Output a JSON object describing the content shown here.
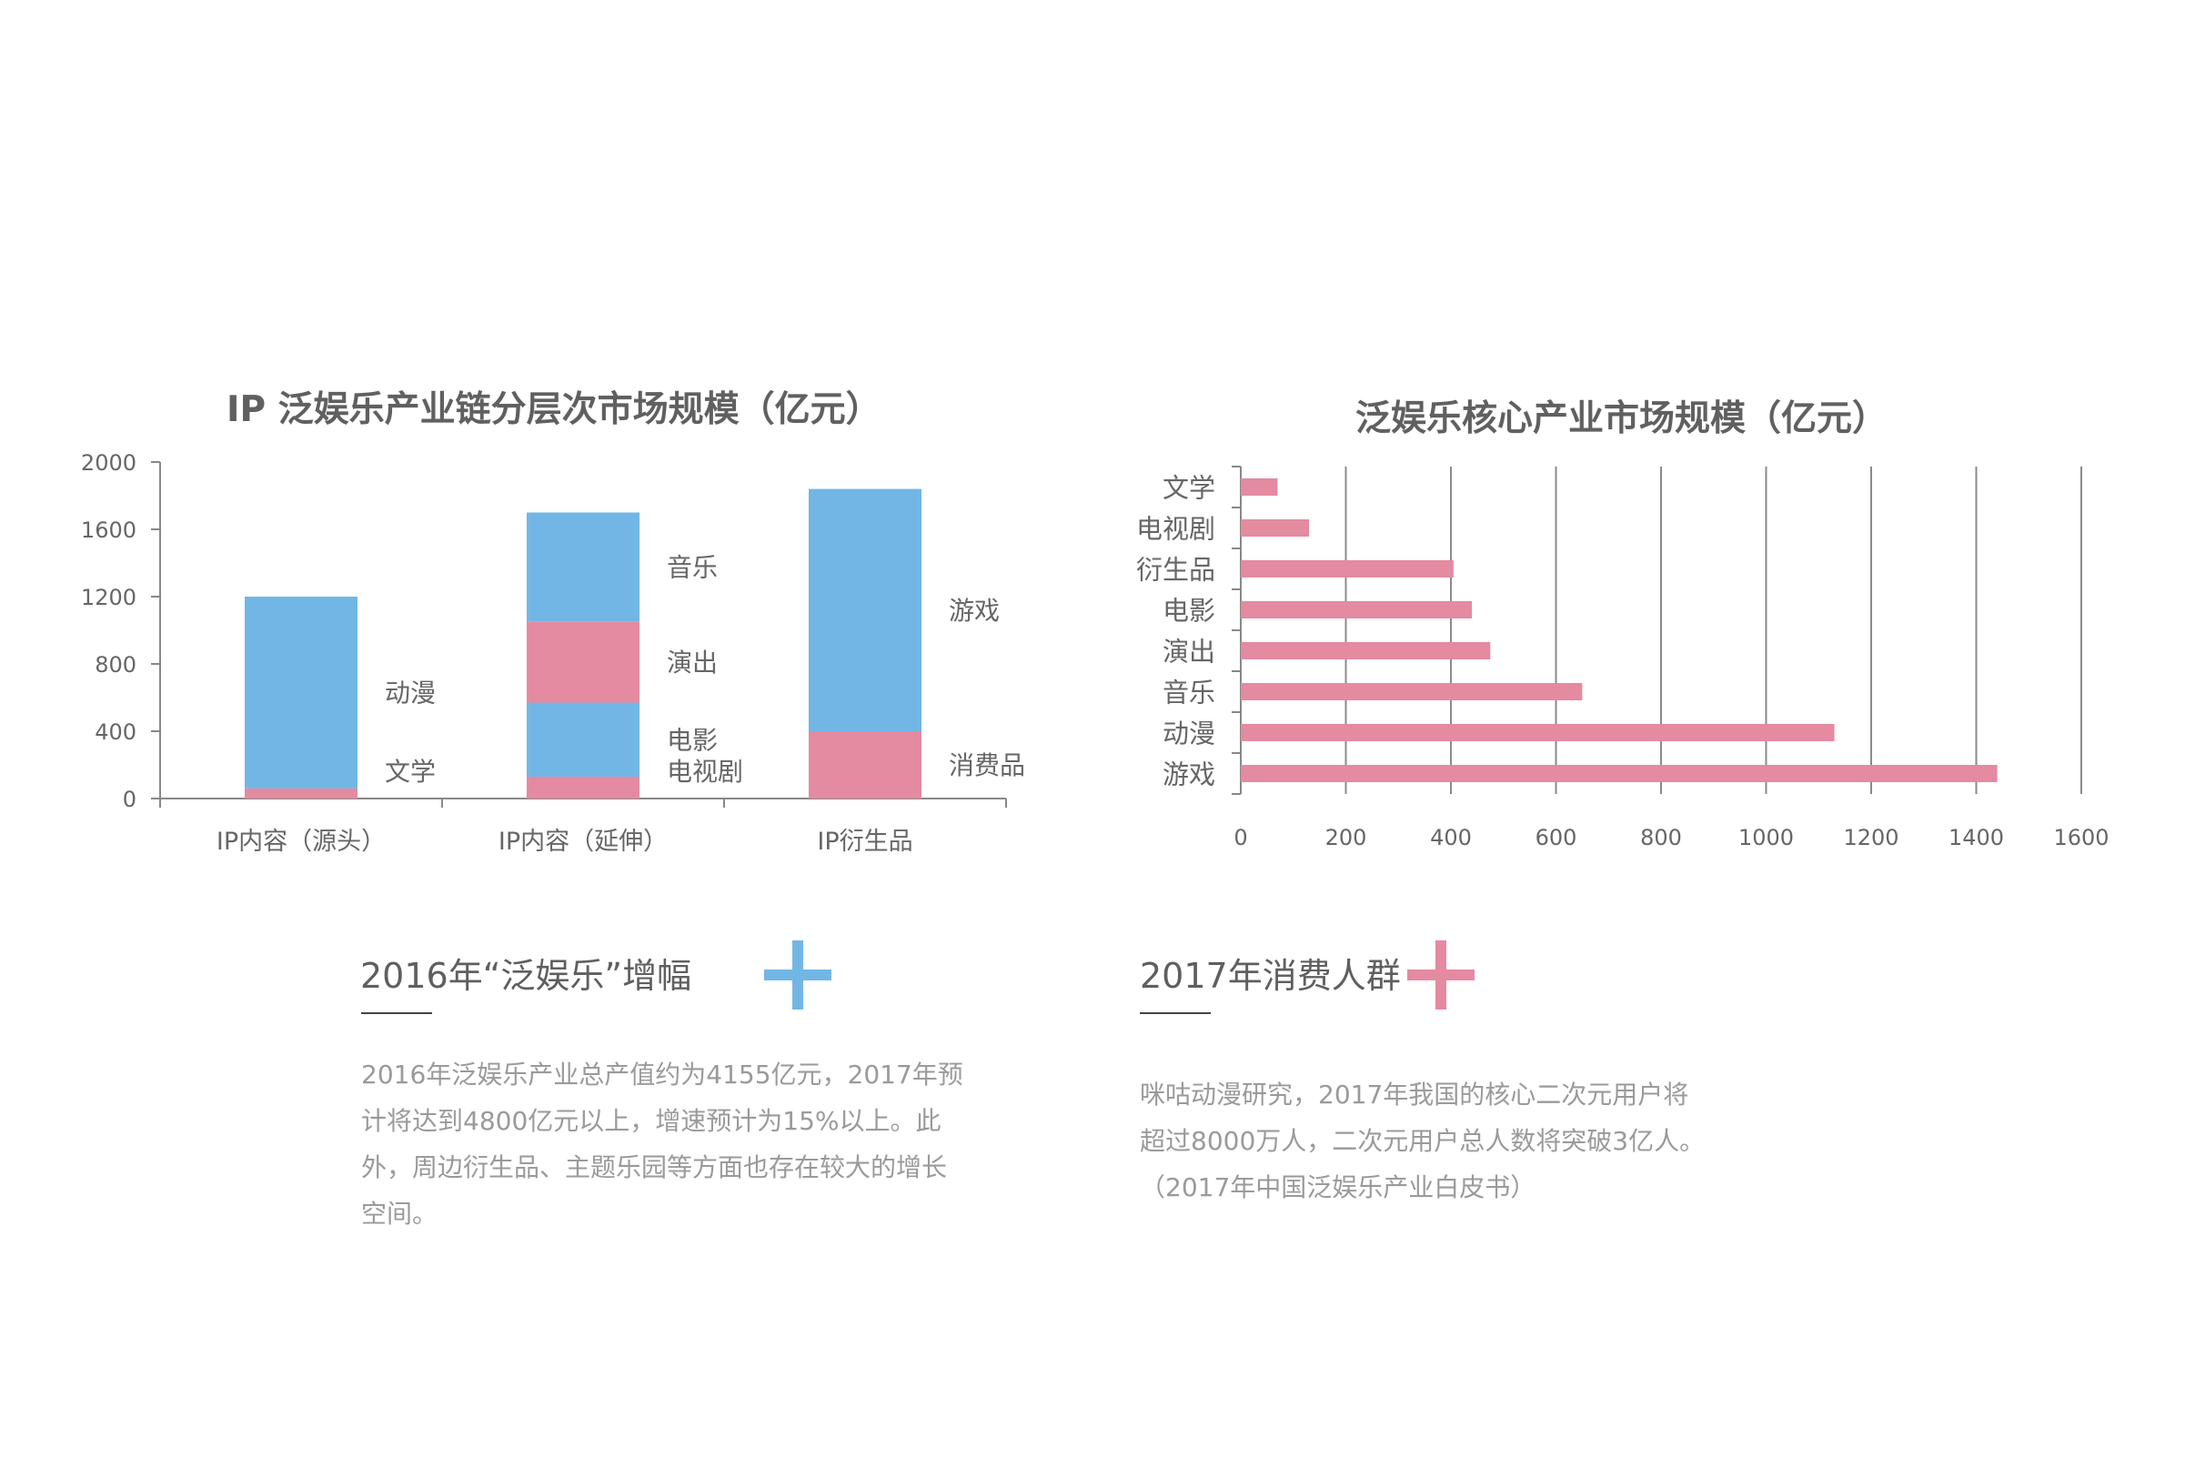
{
  "chart_data": [
    {
      "type": "stacked-bar",
      "title": "IP 泛娱乐产业链分层次市场规模（亿元）",
      "ylim": [
        0,
        2000
      ],
      "yticks": [
        0,
        400,
        800,
        1200,
        1600,
        2000
      ],
      "categories": [
        "IP内容（源头）",
        "IP内容（延伸）",
        "IP衍生品"
      ],
      "stacks": [
        {
          "category": "IP内容（源头）",
          "segments": [
            {
              "name": "文学",
              "value": 60,
              "color": "#e48aa1"
            },
            {
              "name": "动漫",
              "value": 1140,
              "color": "#72b6e5"
            }
          ]
        },
        {
          "category": "IP内容（延伸）",
          "segments": [
            {
              "name": "电视剧",
              "value": 130,
              "color": "#e48aa1"
            },
            {
              "name": "电影",
              "value": 440,
              "color": "#72b6e5"
            },
            {
              "name": "演出",
              "value": 480,
              "color": "#e48aa1"
            },
            {
              "name": "音乐",
              "value": 650,
              "color": "#72b6e5"
            }
          ]
        },
        {
          "category": "IP衍生品",
          "segments": [
            {
              "name": "消费品",
              "value": 400,
              "color": "#e48aa1"
            },
            {
              "name": "游戏",
              "value": 1440,
              "color": "#72b6e5"
            }
          ]
        }
      ],
      "grid": false
    },
    {
      "type": "bar",
      "orientation": "horizontal",
      "title": "泛娱乐核心产业市场规模（亿元）",
      "xlim": [
        0,
        1600
      ],
      "xticks": [
        0,
        200,
        400,
        600,
        800,
        1000,
        1200,
        1400,
        1600
      ],
      "categories": [
        "文学",
        "电视剧",
        "衍生品",
        "电影",
        "演出",
        "音乐",
        "动漫",
        "游戏"
      ],
      "values": [
        70,
        130,
        405,
        440,
        475,
        650,
        1130,
        1440
      ],
      "color": "#e48aa1",
      "grid": true
    }
  ],
  "info": {
    "left": {
      "heading": "2016年“泛娱乐”增幅",
      "lines": [
        "2016年泛娱乐产业总产值约为4155亿元，2017年预",
        "计将达到4800亿元以上，增速预计为15%以上。此",
        "外，周边衍生品、主题乐园等方面也存在较大的增长",
        "空间。"
      ],
      "accent": "#72b6e5",
      "icon": "plus-icon"
    },
    "right": {
      "heading": "2017年消费人群",
      "lines": [
        "咪咕动漫研究，2017年我国的核心二次元用户将",
        "超过8000万人，二次元用户总人数将突破3亿人。",
        "（2017年中国泛娱乐产业白皮书）"
      ],
      "accent": "#e48aa1",
      "icon": "plus-icon"
    }
  }
}
